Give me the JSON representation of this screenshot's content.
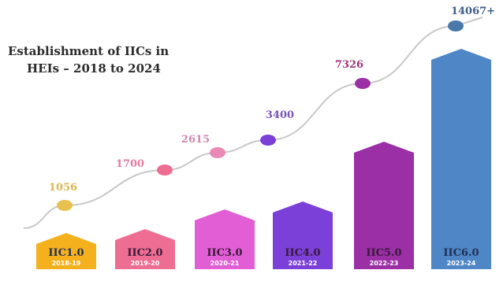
{
  "chart_data": {
    "type": "bar+line",
    "title_lines": [
      "Establishment of IICs in",
      "HEIs – 2018 to 2024"
    ],
    "bars": [
      {
        "label": "IIC1.0",
        "year": "2018-19",
        "color": "#f5b01e",
        "value": 1056
      },
      {
        "label": "IIC2.0",
        "year": "2019-20",
        "color": "#ee6d92",
        "value": 1700
      },
      {
        "label": "IIC3.0",
        "year": "2020-21",
        "color": "#e25ed4",
        "value": 2615
      },
      {
        "label": "IIC4.0",
        "year": "2021-22",
        "color": "#7a40d8",
        "value": 3400
      },
      {
        "label": "IIC5.0",
        "year": "2022-23",
        "color": "#9a2fa6",
        "value": 7326
      },
      {
        "label": "IIC6.0",
        "year": "2023-24",
        "color": "#4f86c5",
        "value": 14067
      }
    ],
    "points": [
      {
        "value_label": "1056",
        "color": "#e8c04f",
        "label_color": "#d8b850"
      },
      {
        "value_label": "1700",
        "color": "#ee6d92",
        "label_color": "#e37a9e"
      },
      {
        "value_label": "2615",
        "color": "#e88ab5",
        "label_color": "#cf86b2"
      },
      {
        "value_label": "3400",
        "color": "#7a40d8",
        "label_color": "#7a55b8"
      },
      {
        "value_label": "7326",
        "color": "#9a2fa6",
        "label_color": "#a0337a"
      },
      {
        "value_label": "14067+",
        "color": "#4a78a8",
        "label_color": "#3e5f86"
      }
    ]
  }
}
